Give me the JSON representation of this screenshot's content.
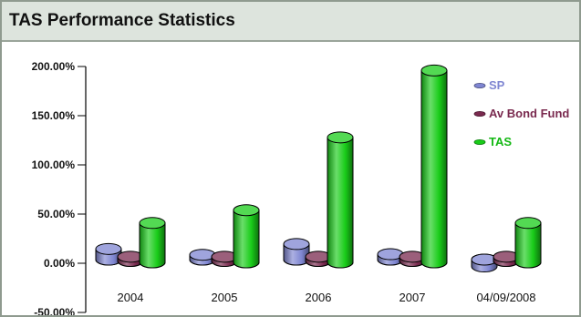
{
  "panel": {
    "title": "TAS Performance Statistics"
  },
  "chart_data": {
    "type": "bar",
    "style": "3d-cylinder",
    "title": "TAS Performance Statistics",
    "categories": [
      "2004",
      "2005",
      "2006",
      "2007",
      "04/09/2008"
    ],
    "y_ticks": [
      "200.00%",
      "150.00%",
      "100.00%",
      "50.00%",
      "0.00%",
      "-50.00%"
    ],
    "ylim": [
      -50,
      200
    ],
    "ylabel": "",
    "xlabel": "",
    "grid": false,
    "legend_position": "right",
    "series": [
      {
        "name": "SP",
        "color": "#7f86d2",
        "values": [
          10.8,
          4.9,
          15.8,
          5.5,
          -7
        ]
      },
      {
        "name": "Av Bond Fund",
        "color": "#7a2a4f",
        "values": [
          4.3,
          4.3,
          4.3,
          4.3,
          4.3
        ]
      },
      {
        "name": "TAS",
        "color": "#19cc19",
        "values": [
          40,
          53,
          127,
          195,
          40
        ]
      }
    ]
  }
}
